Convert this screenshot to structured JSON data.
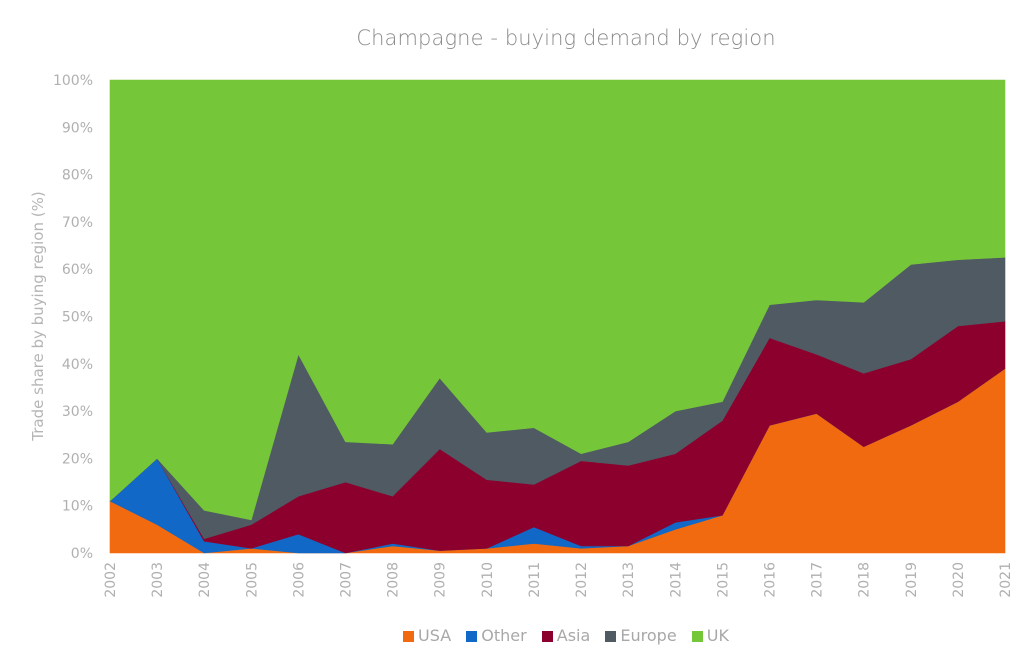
{
  "chart_data": {
    "type": "area",
    "stacked": "percent",
    "title": "Champagne - buying demand by region",
    "xlabel": "",
    "ylabel": "Trade share by buying region (%)",
    "ylim": [
      0,
      100
    ],
    "yticks": [
      "0%",
      "10%",
      "20%",
      "30%",
      "40%",
      "50%",
      "60%",
      "70%",
      "80%",
      "90%",
      "100%"
    ],
    "grid": false,
    "legend_position": "bottom",
    "categories": [
      "2002",
      "2003",
      "2004",
      "2005",
      "2006",
      "2007",
      "2008",
      "2009",
      "2010",
      "2011",
      "2012",
      "2013",
      "2014",
      "2015",
      "2016",
      "2017",
      "2018",
      "2019",
      "2020",
      "2021"
    ],
    "series": [
      {
        "name": "USA",
        "color": "#f26a0f",
        "values": [
          11,
          6,
          0,
          1,
          0,
          0,
          1.5,
          0.5,
          1,
          2,
          1,
          1.5,
          5,
          8,
          27,
          29.5,
          22.5,
          27,
          32,
          39
        ]
      },
      {
        "name": "Other",
        "color": "#1168c6",
        "values": [
          0,
          14,
          2.5,
          0,
          4,
          0,
          0.5,
          0,
          0,
          3.5,
          0.5,
          0,
          1.5,
          0,
          0,
          0,
          0,
          0,
          0,
          0
        ]
      },
      {
        "name": "Asia",
        "color": "#8c002d",
        "values": [
          0,
          0,
          0.5,
          5,
          8,
          15,
          10,
          21.5,
          14.5,
          9,
          18,
          17,
          14.5,
          20,
          18.5,
          12.5,
          15.5,
          14,
          16,
          10
        ]
      },
      {
        "name": "Europe",
        "color": "#4f5a63",
        "values": [
          0,
          0,
          6,
          1,
          30,
          8.5,
          11,
          15,
          10,
          12,
          1.5,
          5,
          9,
          4,
          7,
          11.5,
          15,
          20,
          14,
          13.5
        ]
      },
      {
        "name": "UK",
        "color": "#76c639",
        "values": [
          89,
          80,
          91,
          93,
          58,
          76.5,
          77,
          63,
          74.5,
          73.5,
          79,
          76.5,
          70,
          68,
          47.5,
          46.5,
          47,
          39,
          38,
          37.5
        ]
      }
    ]
  },
  "legend": {
    "items": [
      {
        "label": "USA",
        "color": "#f26a0f"
      },
      {
        "label": "Other",
        "color": "#1168c6"
      },
      {
        "label": "Asia",
        "color": "#8c002d"
      },
      {
        "label": "Europe",
        "color": "#4f5a63"
      },
      {
        "label": "UK",
        "color": "#76c639"
      }
    ]
  }
}
